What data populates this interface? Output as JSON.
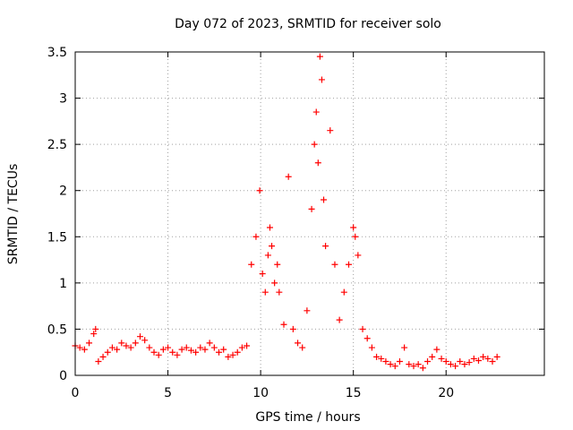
{
  "chart_data": {
    "type": "scatter",
    "title": "Day 072 of 2023, SRMTID for receiver solo",
    "xlabel": "GPS time / hours",
    "ylabel": "SRMTID / TECUs",
    "xlim": [
      0,
      25.3
    ],
    "ylim": [
      0,
      3.5
    ],
    "x_ticks": [
      0,
      5,
      10,
      15,
      20
    ],
    "x_tick_labels": [
      "0",
      "5",
      "10",
      "15",
      "20"
    ],
    "y_ticks": [
      0,
      0.5,
      1,
      1.5,
      2,
      2.5,
      3,
      3.5
    ],
    "y_tick_labels": [
      "0",
      "0.5",
      "1",
      "1.5",
      "2",
      "2.5",
      "3",
      "3.5"
    ],
    "grid": true,
    "marker": "+",
    "color": "#ff0000",
    "series": [
      {
        "name": "SRMTID",
        "x": [
          0.0,
          0.25,
          0.5,
          0.75,
          1.0,
          1.1,
          1.25,
          1.5,
          1.75,
          2.0,
          2.25,
          2.5,
          2.75,
          3.0,
          3.25,
          3.5,
          3.75,
          4.0,
          4.25,
          4.5,
          4.75,
          5.0,
          5.25,
          5.5,
          5.75,
          6.0,
          6.25,
          6.5,
          6.75,
          7.0,
          7.25,
          7.5,
          7.75,
          8.0,
          8.25,
          8.5,
          8.75,
          9.0,
          9.25,
          9.5,
          9.75,
          9.95,
          10.1,
          10.25,
          10.4,
          10.5,
          10.6,
          10.75,
          10.9,
          11.0,
          11.25,
          11.5,
          11.75,
          12.0,
          12.25,
          12.5,
          12.75,
          12.9,
          13.0,
          13.1,
          13.2,
          13.3,
          13.4,
          13.5,
          13.75,
          14.0,
          14.25,
          14.5,
          14.75,
          15.0,
          15.1,
          15.25,
          15.5,
          15.75,
          16.0,
          16.25,
          16.5,
          16.75,
          17.0,
          17.25,
          17.5,
          17.75,
          18.0,
          18.25,
          18.5,
          18.75,
          19.0,
          19.25,
          19.5,
          19.75,
          20.0,
          20.25,
          20.5,
          20.75,
          21.0,
          21.25,
          21.5,
          21.75,
          22.0,
          22.25,
          22.5,
          22.75
        ],
        "y": [
          0.32,
          0.3,
          0.28,
          0.35,
          0.45,
          0.5,
          0.15,
          0.2,
          0.25,
          0.3,
          0.28,
          0.35,
          0.32,
          0.3,
          0.35,
          0.42,
          0.38,
          0.3,
          0.25,
          0.22,
          0.28,
          0.3,
          0.25,
          0.22,
          0.28,
          0.3,
          0.27,
          0.25,
          0.3,
          0.28,
          0.35,
          0.3,
          0.25,
          0.28,
          0.2,
          0.22,
          0.25,
          0.3,
          0.32,
          1.2,
          1.5,
          2.0,
          1.1,
          0.9,
          1.3,
          1.6,
          1.4,
          1.0,
          1.2,
          0.9,
          0.55,
          2.15,
          0.5,
          0.35,
          0.3,
          0.7,
          1.8,
          2.5,
          2.85,
          2.3,
          3.45,
          3.2,
          1.9,
          1.4,
          2.65,
          1.2,
          0.6,
          0.9,
          1.2,
          1.6,
          1.5,
          1.3,
          0.5,
          0.4,
          0.3,
          0.2,
          0.18,
          0.15,
          0.12,
          0.1,
          0.15,
          0.3,
          0.12,
          0.1,
          0.12,
          0.08,
          0.15,
          0.2,
          0.28,
          0.18,
          0.15,
          0.12,
          0.1,
          0.15,
          0.12,
          0.14,
          0.18,
          0.16,
          0.2,
          0.18,
          0.15,
          0.2
        ]
      }
    ]
  }
}
